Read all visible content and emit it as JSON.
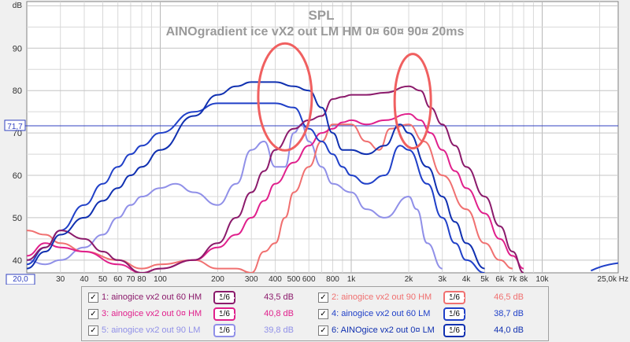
{
  "chart_data": {
    "type": "line",
    "title": "SPL",
    "subtitle": "AINOgradient ice vX2 out LM HM 0¤ 60¤ 90¤ 20ms",
    "ylabel": "dB",
    "xlabel": "Hz",
    "x_scale": "log",
    "xlim": [
      20,
      25000
    ],
    "ylim": [
      37,
      101
    ],
    "grid": true,
    "x_tick_labels": [
      "20,0",
      "30",
      "40",
      "50",
      "60",
      "70",
      "80",
      "100",
      "200",
      "300",
      "400",
      "500",
      "600",
      "800",
      "1k",
      "2k",
      "3k",
      "4k",
      "5k",
      "6k",
      "7k",
      "8k",
      "10k",
      "25,0k Hz"
    ],
    "y_tick_labels": [
      "40",
      "50",
      "60",
      "70",
      "80",
      "90",
      "dB"
    ],
    "reference_line": {
      "label": "71,7",
      "value": 71.7
    },
    "annotations": [
      "ellipse around 450 Hz",
      "ellipse around 2 kHz"
    ],
    "series": [
      {
        "name": "1: ainogice vx2 out 60 HM",
        "smoothing": "1/6",
        "level": "43,5 dB",
        "color": "#8b1a6b",
        "points": [
          [
            20,
            40
          ],
          [
            25,
            43
          ],
          [
            30,
            47
          ],
          [
            40,
            45
          ],
          [
            50,
            42
          ],
          [
            60,
            40
          ],
          [
            80,
            37
          ],
          [
            100,
            38
          ],
          [
            150,
            40
          ],
          [
            200,
            44
          ],
          [
            250,
            50
          ],
          [
            300,
            56
          ],
          [
            350,
            61
          ],
          [
            400,
            66
          ],
          [
            500,
            71
          ],
          [
            600,
            73
          ],
          [
            700,
            74
          ],
          [
            800,
            78
          ],
          [
            900,
            78.5
          ],
          [
            1000,
            79
          ],
          [
            1200,
            79
          ],
          [
            1500,
            79.5
          ],
          [
            2000,
            81
          ],
          [
            2300,
            80
          ],
          [
            2600,
            76
          ],
          [
            3000,
            72
          ],
          [
            3500,
            67
          ],
          [
            4000,
            62
          ],
          [
            5000,
            55
          ],
          [
            6000,
            48
          ],
          [
            7000,
            42
          ],
          [
            8000,
            37
          ]
        ]
      },
      {
        "name": "2: ainogice vx2 out 90 HM",
        "smoothing": "1/6",
        "level": "46,5 dB",
        "color": "#f07070",
        "points": [
          [
            20,
            47
          ],
          [
            25,
            46
          ],
          [
            30,
            44
          ],
          [
            40,
            42
          ],
          [
            60,
            40
          ],
          [
            80,
            38
          ],
          [
            100,
            39
          ],
          [
            150,
            40
          ],
          [
            200,
            38
          ],
          [
            250,
            38
          ],
          [
            300,
            37
          ],
          [
            350,
            42
          ],
          [
            400,
            44
          ],
          [
            450,
            50
          ],
          [
            500,
            56
          ],
          [
            600,
            62
          ],
          [
            700,
            68
          ],
          [
            800,
            72
          ],
          [
            1000,
            72
          ],
          [
            1200,
            68
          ],
          [
            1400,
            66
          ],
          [
            1600,
            71
          ],
          [
            2000,
            72
          ],
          [
            2400,
            68
          ],
          [
            3000,
            60
          ],
          [
            4000,
            52
          ],
          [
            5000,
            44
          ],
          [
            6000,
            40
          ],
          [
            7000,
            38
          ]
        ]
      },
      {
        "name": "3: ainogice vx2 out 0¤ HM",
        "smoothing": "1/6",
        "level": "40,8 dB",
        "color": "#e0208c",
        "points": [
          [
            20,
            41
          ],
          [
            25,
            44
          ],
          [
            30,
            43
          ],
          [
            40,
            42
          ],
          [
            60,
            39
          ],
          [
            80,
            37
          ],
          [
            100,
            38
          ],
          [
            150,
            40
          ],
          [
            200,
            43
          ],
          [
            250,
            46
          ],
          [
            300,
            50
          ],
          [
            350,
            54
          ],
          [
            400,
            58
          ],
          [
            500,
            63
          ],
          [
            600,
            67
          ],
          [
            700,
            70
          ],
          [
            800,
            71
          ],
          [
            900,
            72.5
          ],
          [
            1000,
            73
          ],
          [
            1200,
            72
          ],
          [
            1500,
            73
          ],
          [
            2000,
            74.5
          ],
          [
            2300,
            73
          ],
          [
            2600,
            70
          ],
          [
            3000,
            66
          ],
          [
            3500,
            61
          ],
          [
            4000,
            57
          ],
          [
            5000,
            51
          ],
          [
            6000,
            45
          ],
          [
            7000,
            41
          ],
          [
            8000,
            38
          ]
        ]
      },
      {
        "name": "4: ainogice vx2 out 60 LM",
        "smoothing": "1/6",
        "level": "38,7 dB",
        "color": "#2040c8",
        "points": [
          [
            20,
            39
          ],
          [
            25,
            43
          ],
          [
            30,
            47
          ],
          [
            40,
            53
          ],
          [
            50,
            58
          ],
          [
            60,
            62
          ],
          [
            70,
            65
          ],
          [
            80,
            67
          ],
          [
            100,
            70
          ],
          [
            150,
            75
          ],
          [
            200,
            77
          ],
          [
            300,
            77
          ],
          [
            400,
            77
          ],
          [
            500,
            76
          ],
          [
            600,
            71
          ],
          [
            700,
            68
          ],
          [
            800,
            65
          ],
          [
            900,
            62
          ],
          [
            1000,
            60
          ],
          [
            1200,
            58
          ],
          [
            1500,
            60
          ],
          [
            1800,
            67
          ],
          [
            2000,
            66
          ],
          [
            2500,
            58
          ],
          [
            3000,
            50
          ],
          [
            3500,
            44
          ],
          [
            4000,
            40
          ],
          [
            5000,
            37
          ]
        ]
      },
      {
        "name": "5: ainogice vx2 out 90 LM",
        "smoothing": "1/6",
        "level": "39,8 dB",
        "color": "#9090e8",
        "points": [
          [
            20,
            40
          ],
          [
            25,
            39
          ],
          [
            30,
            40
          ],
          [
            40,
            43
          ],
          [
            50,
            46
          ],
          [
            60,
            50
          ],
          [
            70,
            53
          ],
          [
            80,
            55
          ],
          [
            100,
            57
          ],
          [
            120,
            58
          ],
          [
            150,
            56
          ],
          [
            200,
            53
          ],
          [
            250,
            58
          ],
          [
            300,
            66
          ],
          [
            350,
            68
          ],
          [
            400,
            62
          ],
          [
            450,
            62
          ],
          [
            500,
            70
          ],
          [
            550,
            72
          ],
          [
            600,
            68
          ],
          [
            700,
            62
          ],
          [
            800,
            58
          ],
          [
            1000,
            56
          ],
          [
            1200,
            52
          ],
          [
            1500,
            50
          ],
          [
            2000,
            55
          ],
          [
            2200,
            52
          ],
          [
            2500,
            44
          ],
          [
            3000,
            38
          ]
        ]
      },
      {
        "name": "6: AINOgice vx2 out 0¤ LM",
        "smoothing": "1/6",
        "level": "44,0 dB",
        "color": "#1030b0",
        "points": [
          [
            20,
            38
          ],
          [
            25,
            42
          ],
          [
            30,
            46
          ],
          [
            40,
            50
          ],
          [
            50,
            54
          ],
          [
            60,
            57
          ],
          [
            70,
            60
          ],
          [
            80,
            62
          ],
          [
            100,
            66
          ],
          [
            150,
            74
          ],
          [
            200,
            79
          ],
          [
            250,
            81
          ],
          [
            300,
            82
          ],
          [
            400,
            82
          ],
          [
            500,
            81
          ],
          [
            600,
            80
          ],
          [
            700,
            76
          ],
          [
            800,
            70
          ],
          [
            900,
            66
          ],
          [
            1000,
            66
          ],
          [
            1200,
            65
          ],
          [
            1500,
            67
          ],
          [
            1800,
            72
          ],
          [
            2000,
            70
          ],
          [
            2500,
            62
          ],
          [
            3000,
            55
          ],
          [
            3500,
            49
          ],
          [
            4000,
            44
          ],
          [
            5000,
            38
          ]
        ]
      }
    ]
  },
  "legend": {
    "check": "✓",
    "items": [
      {
        "label": "1: ainogice vx2 out 60 HM",
        "smoothing": "1/6",
        "level": "43,5 dB",
        "color": "#8b1a6b"
      },
      {
        "label": "2: ainogice vx2 out 90 HM",
        "smoothing": "1/6",
        "level": "46,5 dB",
        "color": "#f07070"
      },
      {
        "label": "3: ainogice vx2 out 0¤ HM",
        "smoothing": "1/6",
        "level": "40,8 dB",
        "color": "#e0208c"
      },
      {
        "label": "4: ainogice vx2 out 60 LM",
        "smoothing": "1/6",
        "level": "38,7 dB",
        "color": "#2040c8"
      },
      {
        "label": "5: ainogice vx2 out 90 LM",
        "smoothing": "1/6",
        "level": "39,8 dB",
        "color": "#9090e8"
      },
      {
        "label": "6: AINOgice vx2 out 0¤ LM",
        "smoothing": "1/6",
        "level": "44,0 dB",
        "color": "#1030b0"
      }
    ]
  },
  "colors": {
    "background": "#ffffff",
    "grid": "#d8d8d8",
    "axis_text": "#303030",
    "title": "#9a9a9a",
    "reference_line": "#3040c0",
    "annotation": "#f06060"
  }
}
